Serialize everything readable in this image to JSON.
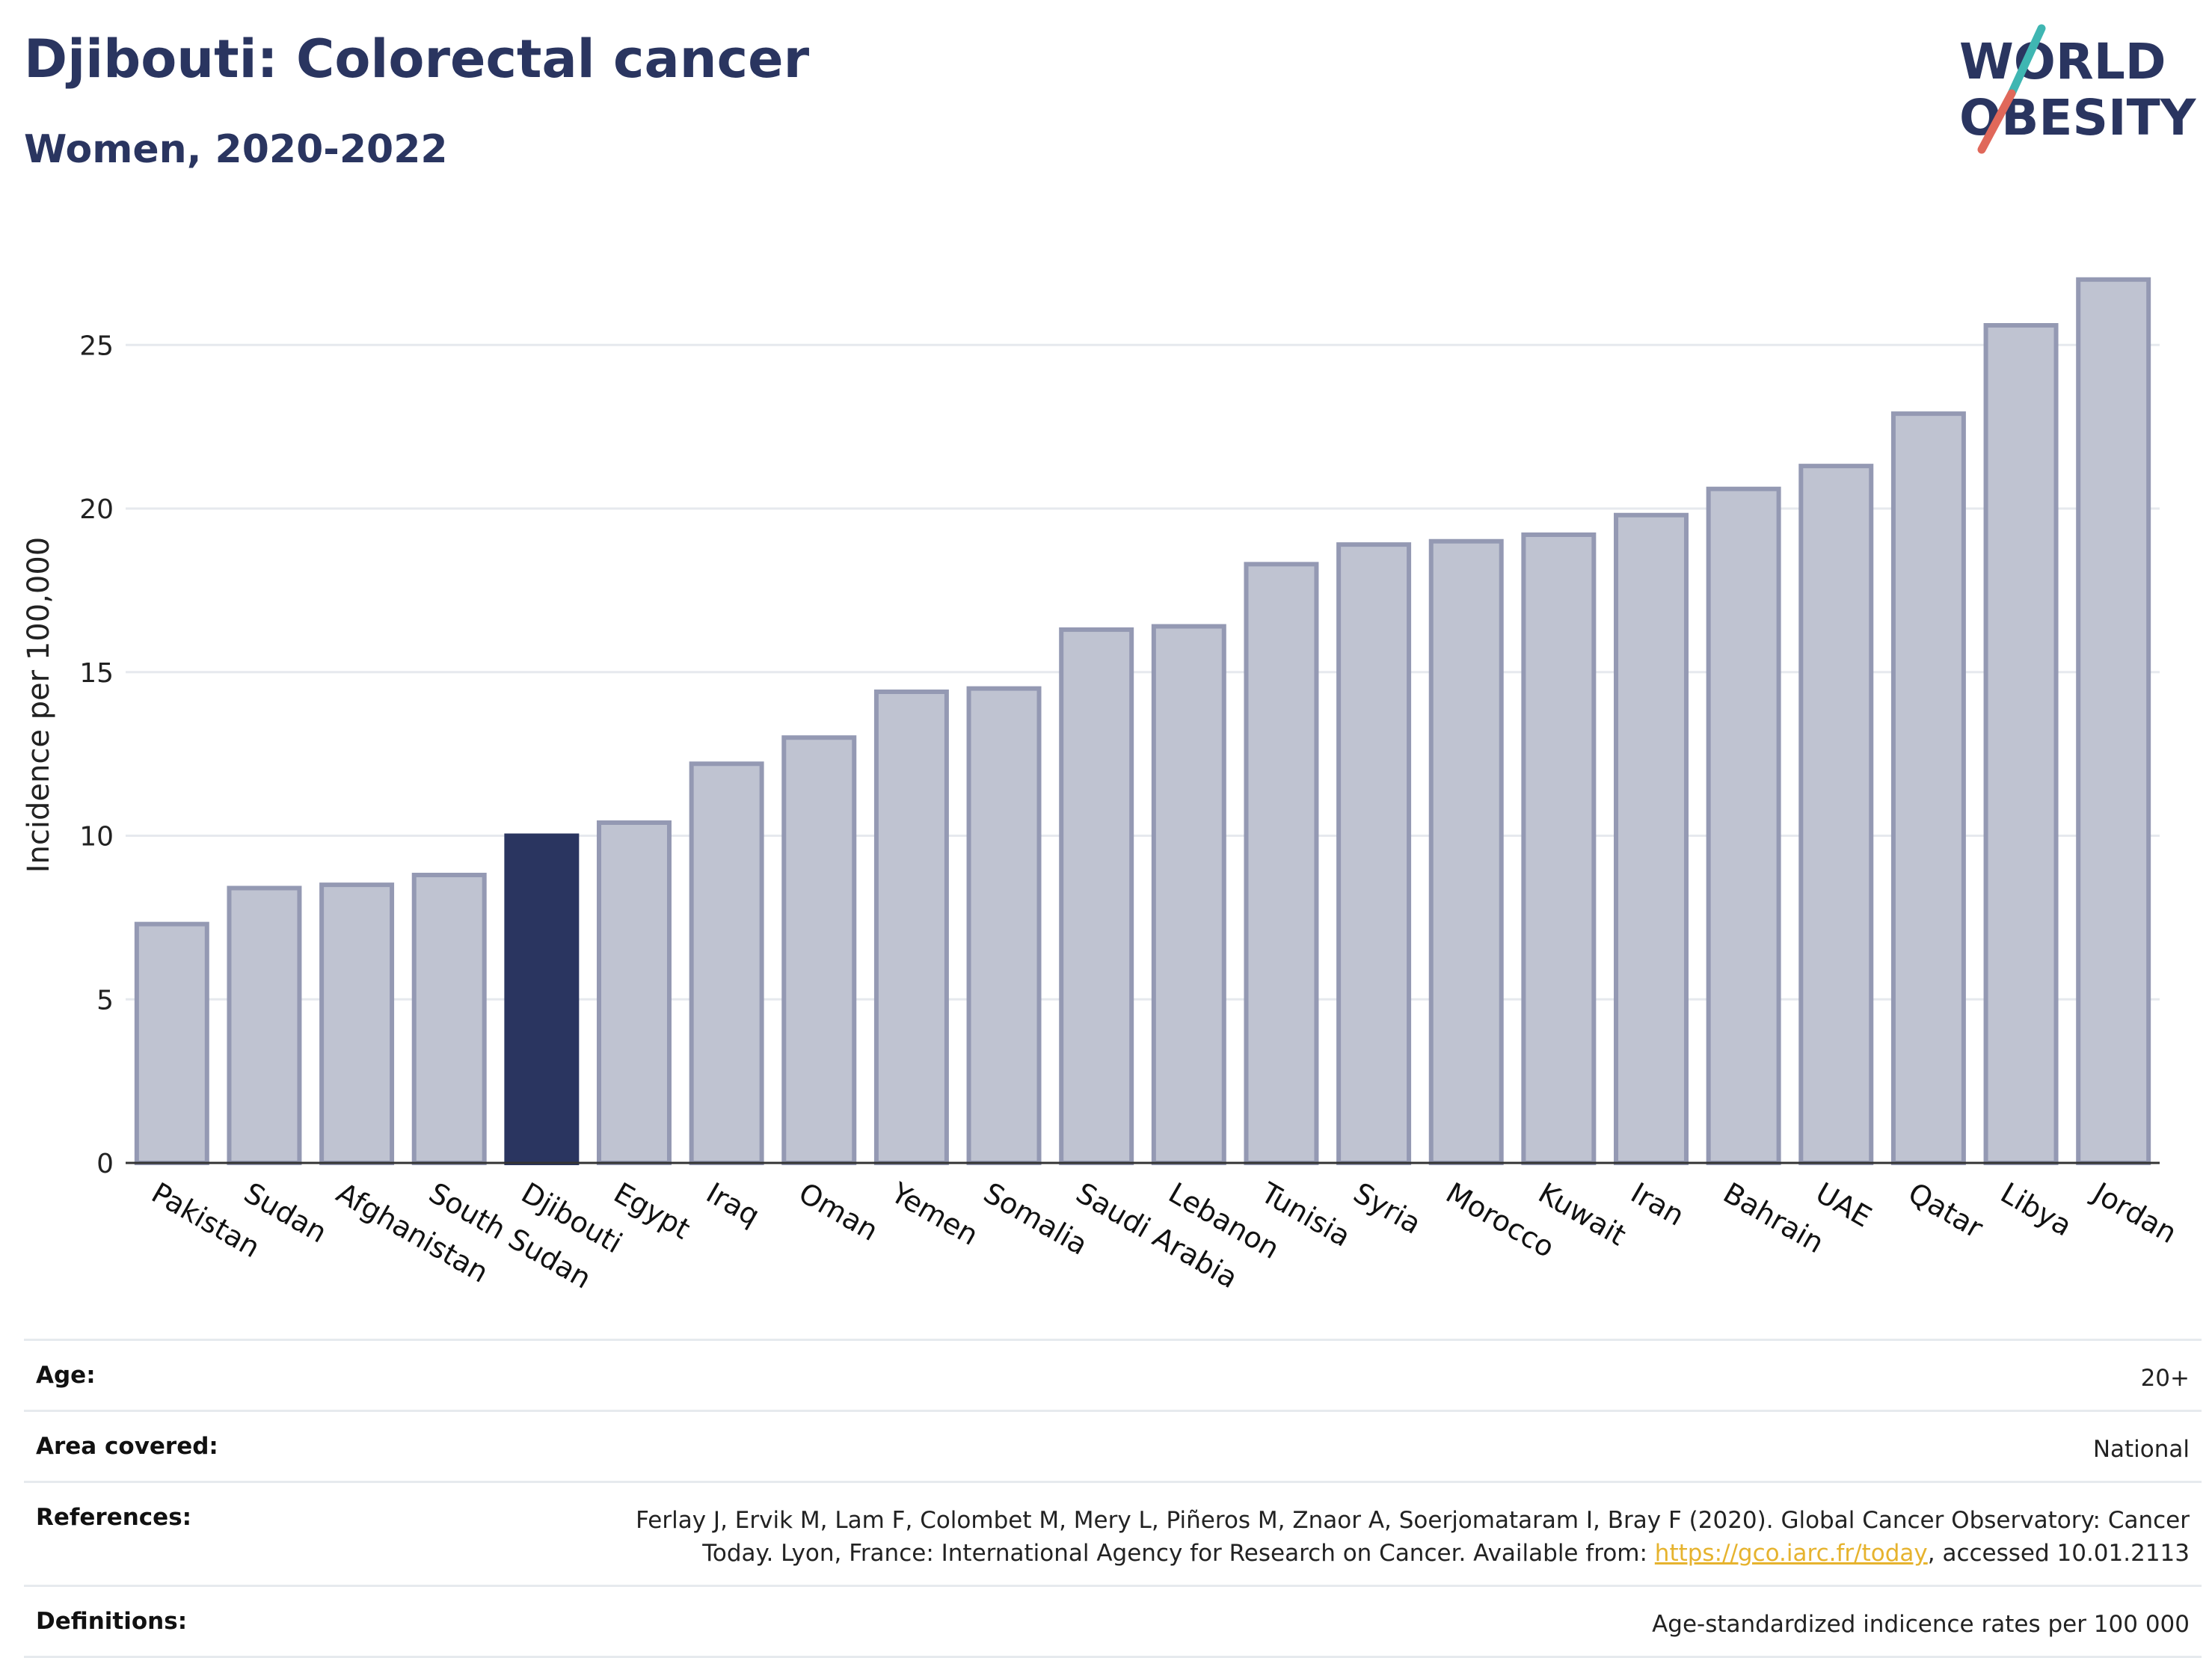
{
  "header": {
    "title": "Djibouti: Colorectal cancer",
    "subtitle": "Women, 2020-2022"
  },
  "logo": {
    "line1": "WORLD",
    "line2": "OBESITY",
    "colors": {
      "text": "#2a3560",
      "slash_teal": "#3fb6b2",
      "slash_red": "#e0685a"
    }
  },
  "chart_data": {
    "type": "bar",
    "categories": [
      "Pakistan",
      "Sudan",
      "Afghanistan",
      "South Sudan",
      "Djibouti",
      "Egypt",
      "Iraq",
      "Oman",
      "Yemen",
      "Somalia",
      "Saudi Arabia",
      "Lebanon",
      "Tunisia",
      "Syria",
      "Morocco",
      "Kuwait",
      "Iran",
      "Bahrain",
      "UAE",
      "Qatar",
      "Libya",
      "Jordan"
    ],
    "values": [
      7.3,
      8.4,
      8.5,
      8.8,
      10.0,
      10.4,
      12.2,
      13.0,
      14.4,
      14.5,
      16.3,
      16.4,
      18.3,
      18.9,
      19.0,
      19.2,
      19.8,
      20.6,
      21.3,
      22.9,
      25.6,
      27.0
    ],
    "highlight": "Djibouti",
    "xlabel": "",
    "ylabel": "Incidence per 100,000",
    "ylim": [
      0,
      28
    ],
    "yticks": [
      0,
      5,
      10,
      15,
      20,
      25
    ],
    "grid": true,
    "colors": {
      "bar": "#bfc3d1",
      "bar_edge": "#9499b3",
      "highlight": "#2a3560"
    }
  },
  "meta": {
    "rows": [
      {
        "label": "Age:",
        "value": "20+"
      },
      {
        "label": "Area covered:",
        "value": "National"
      },
      {
        "label": "References:",
        "value_pre": "Ferlay J, Ervik M, Lam F, Colombet M, Mery L, Piñeros M, Znaor A, Soerjomataram I, Bray F (2020). Global Cancer Observatory: Cancer Today. Lyon, France: International Agency for Research on Cancer. Available from: ",
        "link": "https://gco.iarc.fr/today",
        "value_post": ", accessed 10.01.2113"
      },
      {
        "label": "Definitions:",
        "value": "Age-standardized indicence rates per 100 000"
      }
    ]
  }
}
